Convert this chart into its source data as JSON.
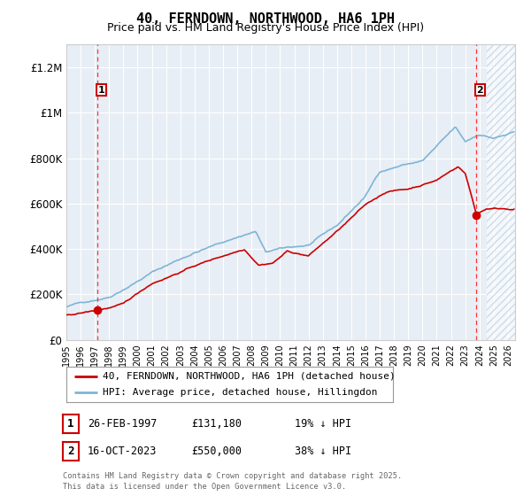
{
  "title": "40, FERNDOWN, NORTHWOOD, HA6 1PH",
  "subtitle": "Price paid vs. HM Land Registry's House Price Index (HPI)",
  "ylim": [
    0,
    1300000
  ],
  "yticks": [
    0,
    200000,
    400000,
    600000,
    800000,
    1000000,
    1200000
  ],
  "ytick_labels": [
    "£0",
    "£200K",
    "£400K",
    "£600K",
    "£800K",
    "£1M",
    "£1.2M"
  ],
  "xlim_start": 1995.0,
  "xlim_end": 2026.5,
  "purchase1_x": 1997.15,
  "purchase1_y": 131180,
  "purchase1_label": "1",
  "purchase2_x": 2023.79,
  "purchase2_y": 550000,
  "purchase2_label": "2",
  "hpi_color": "#7eb5d6",
  "price_color": "#cc0000",
  "bg_color": "#e8eef5",
  "grid_color": "#ffffff",
  "vline_color": "#ff3333",
  "legend_line1": "40, FERNDOWN, NORTHWOOD, HA6 1PH (detached house)",
  "legend_line2": "HPI: Average price, detached house, Hillingdon",
  "footnote1": "Contains HM Land Registry data © Crown copyright and database right 2025.",
  "footnote2": "This data is licensed under the Open Government Licence v3.0.",
  "table_rows": [
    {
      "num": "1",
      "date": "26-FEB-1997",
      "price": "£131,180",
      "hpi": "19% ↓ HPI"
    },
    {
      "num": "2",
      "date": "16-OCT-2023",
      "price": "£550,000",
      "hpi": "38% ↓ HPI"
    }
  ]
}
